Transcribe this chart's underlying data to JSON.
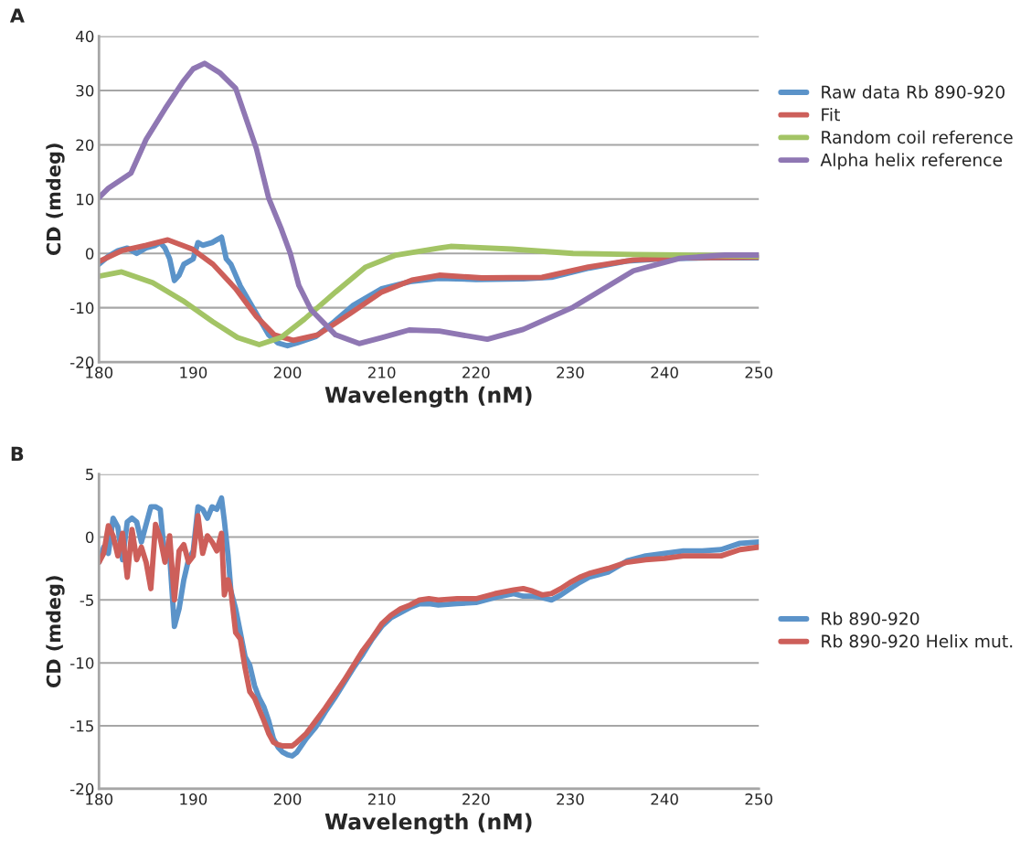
{
  "chart_data": [
    {
      "type": "line",
      "title": "A",
      "xlabel": "Wavelength (nM)",
      "ylabel": "CD (mdeg)",
      "xlim": [
        180,
        250
      ],
      "xticks": [
        180,
        190,
        200,
        210,
        220,
        230,
        240,
        250
      ],
      "ylim": [
        -20,
        40
      ],
      "yticks": [
        -20,
        -10,
        0,
        10,
        20,
        30,
        40
      ],
      "grid": "y",
      "legend": "right",
      "marker": "none",
      "line_style": "solid",
      "series": [
        {
          "name": "Raw data Rb 890-920",
          "color": "#5b93c9",
          "x": [
            180,
            181,
            182,
            183,
            184,
            185,
            186,
            186.5,
            187,
            187.5,
            188,
            188.5,
            189,
            190,
            190.5,
            191,
            192,
            192.5,
            193,
            193.5,
            194,
            195,
            196,
            197,
            198,
            199,
            200,
            201,
            203,
            205,
            207,
            210,
            213,
            216,
            220,
            225,
            228,
            232,
            236,
            240,
            245,
            250
          ],
          "values": [
            -2,
            -0.5,
            0.5,
            1,
            0,
            1,
            1.5,
            2,
            1,
            -1,
            -5,
            -4,
            -2,
            -1,
            2,
            1.5,
            2,
            2.5,
            3,
            -1,
            -2,
            -6,
            -9,
            -12,
            -15,
            -16.5,
            -17,
            -16.5,
            -15.3,
            -12.5,
            -9.5,
            -6.5,
            -5.2,
            -4.6,
            -4.8,
            -4.7,
            -4.4,
            -2.7,
            -1.4,
            -1,
            -0.8,
            -0.8
          ]
        },
        {
          "name": "Fit",
          "color": "#cd5f5a",
          "x": [
            180,
            182.4,
            185,
            187.3,
            189.9,
            192.1,
            194.5,
            196.7,
            198.6,
            200.6,
            203.2,
            206.7,
            210,
            213.2,
            216.1,
            220.6,
            227,
            231.9,
            236.7,
            241.6,
            250
          ],
          "values": [
            -1.5,
            0.5,
            1.5,
            2.5,
            0.8,
            -2,
            -6.5,
            -11.6,
            -15,
            -16,
            -15,
            -11,
            -7.1,
            -4.9,
            -4,
            -4.5,
            -4.4,
            -2.5,
            -1.2,
            -0.8,
            -0.7
          ]
        },
        {
          "name": "Random coil reference",
          "color": "#a3c465",
          "x": [
            180,
            182.4,
            185.7,
            188.9,
            192.1,
            194.7,
            197,
            199.3,
            201.8,
            205.1,
            208.3,
            211.5,
            216.1,
            217.3,
            223.8,
            230.3,
            236.7,
            241.6,
            250
          ],
          "values": [
            -4.2,
            -3.4,
            -5.4,
            -8.7,
            -12.6,
            -15.5,
            -16.8,
            -15.5,
            -12.1,
            -7.1,
            -2.5,
            -0.3,
            1,
            1.3,
            0.8,
            0,
            -0.2,
            -0.3,
            -0.5
          ]
        },
        {
          "name": "Alpha helix reference",
          "color": "#8f77b3",
          "x": [
            180,
            181,
            183.4,
            185,
            187,
            188.9,
            190,
            191.2,
            192.8,
            194.5,
            196.7,
            198,
            199.3,
            200.3,
            201.2,
            202.5,
            205.1,
            207.6,
            210,
            212.9,
            216.1,
            221.2,
            225,
            230.3,
            236.7,
            241.6,
            246.4,
            250
          ],
          "values": [
            10.3,
            12,
            14.8,
            21,
            26.6,
            31.6,
            34,
            35,
            33.3,
            30.4,
            19.3,
            10.2,
            4.7,
            0,
            -5.9,
            -10.4,
            -15,
            -16.6,
            -15.5,
            -14.1,
            -14.3,
            -15.8,
            -14,
            -9.9,
            -3.2,
            -0.9,
            -0.3,
            -0.3
          ]
        }
      ]
    },
    {
      "type": "line",
      "title": "B",
      "xlabel": "Wavelength (nM)",
      "ylabel": "CD (mdeg)",
      "xlim": [
        180,
        250
      ],
      "xticks": [
        180,
        190,
        200,
        210,
        220,
        230,
        240,
        250
      ],
      "ylim": [
        -20,
        5
      ],
      "yticks": [
        -20,
        -15,
        -10,
        -5,
        0,
        5
      ],
      "grid": "y",
      "legend": "right",
      "marker": "none",
      "line_style": "solid",
      "series": [
        {
          "name": "Rb 890-920",
          "color": "#5b93c9",
          "x": [
            180,
            180.5,
            181,
            181.5,
            182,
            182.5,
            183,
            183.5,
            184,
            184.5,
            185,
            185.5,
            186,
            186.5,
            187,
            187.5,
            188,
            188.5,
            189,
            189.5,
            190,
            190.5,
            191,
            191.5,
            192,
            192.5,
            193,
            193.3,
            193.7,
            194,
            194.5,
            195,
            195.5,
            196,
            196.5,
            197,
            197.5,
            198,
            198.5,
            199,
            199.5,
            200,
            200.5,
            201,
            202,
            203,
            204,
            205,
            206,
            207,
            208,
            209,
            210,
            211,
            212,
            213,
            214,
            215,
            216,
            218,
            220,
            222,
            224,
            225,
            226,
            227,
            228,
            229,
            230,
            231,
            232,
            234,
            236,
            238,
            240,
            242,
            244,
            246,
            248,
            250
          ],
          "values": [
            -2,
            -0.8,
            -1.3,
            1.5,
            0.8,
            -1.8,
            1.2,
            1.5,
            1.2,
            -0.4,
            1,
            2.4,
            2.4,
            2.2,
            -1.8,
            -1.5,
            -7.1,
            -5.7,
            -3.4,
            -1.8,
            -1.1,
            2.4,
            2.2,
            1.5,
            2.4,
            2.2,
            3.1,
            1.3,
            -1.5,
            -4.3,
            -5.7,
            -7.6,
            -9.5,
            -10.2,
            -11.8,
            -12.8,
            -13.5,
            -14.6,
            -16,
            -16.7,
            -17.1,
            -17.3,
            -17.4,
            -17.1,
            -16,
            -15.1,
            -13.9,
            -12.8,
            -11.6,
            -10.4,
            -9.3,
            -8.1,
            -7.1,
            -6.4,
            -6,
            -5.6,
            -5.3,
            -5.3,
            -5.4,
            -5.3,
            -5.2,
            -4.8,
            -4.5,
            -4.7,
            -4.7,
            -4.8,
            -5,
            -4.6,
            -4.1,
            -3.6,
            -3.2,
            -2.8,
            -1.9,
            -1.5,
            -1.3,
            -1.1,
            -1.1,
            -1,
            -0.5,
            -0.4
          ]
        },
        {
          "name": "Rb 890-920 Helix mut.",
          "color": "#cd5f5a",
          "x": [
            180,
            180.5,
            181,
            181.5,
            182,
            182.5,
            183,
            183.5,
            184,
            184.5,
            185,
            185.5,
            186,
            186.5,
            187,
            187.5,
            188,
            188.5,
            189,
            189.5,
            190,
            190.5,
            191,
            191.5,
            192,
            192.5,
            193,
            193.3,
            193.7,
            194,
            194.5,
            195,
            195.5,
            196,
            196.5,
            197,
            197.5,
            198,
            198.5,
            199,
            199.5,
            200,
            200.5,
            201,
            202,
            203,
            204,
            205,
            206,
            207,
            208,
            209,
            210,
            211,
            212,
            213,
            214,
            215,
            216,
            218,
            220,
            222,
            224,
            225,
            226,
            227,
            228,
            229,
            230,
            231,
            232,
            234,
            236,
            238,
            240,
            242,
            244,
            246,
            248,
            250
          ],
          "values": [
            -2,
            -1.3,
            0.9,
            0.1,
            -1.5,
            0.3,
            -3.2,
            0.6,
            -1.8,
            -0.8,
            -2,
            -4.1,
            1,
            -0.1,
            -2,
            0.1,
            -5,
            -1.1,
            -0.6,
            -2,
            -1.5,
            1.7,
            -1.3,
            0.1,
            -0.4,
            -1.1,
            0.3,
            -4.6,
            -3.4,
            -4.3,
            -7.6,
            -8.1,
            -10.4,
            -12.3,
            -12.8,
            -13.7,
            -14.6,
            -15.6,
            -16.3,
            -16.5,
            -16.6,
            -16.6,
            -16.6,
            -16.3,
            -15.6,
            -14.6,
            -13.6,
            -12.5,
            -11.4,
            -10.2,
            -9,
            -8,
            -6.9,
            -6.2,
            -5.7,
            -5.4,
            -5,
            -4.9,
            -5,
            -4.9,
            -4.9,
            -4.5,
            -4.2,
            -4.1,
            -4.3,
            -4.6,
            -4.5,
            -4.1,
            -3.6,
            -3.2,
            -2.9,
            -2.5,
            -2,
            -1.8,
            -1.7,
            -1.5,
            -1.5,
            -1.5,
            -1,
            -0.8
          ]
        }
      ]
    }
  ]
}
